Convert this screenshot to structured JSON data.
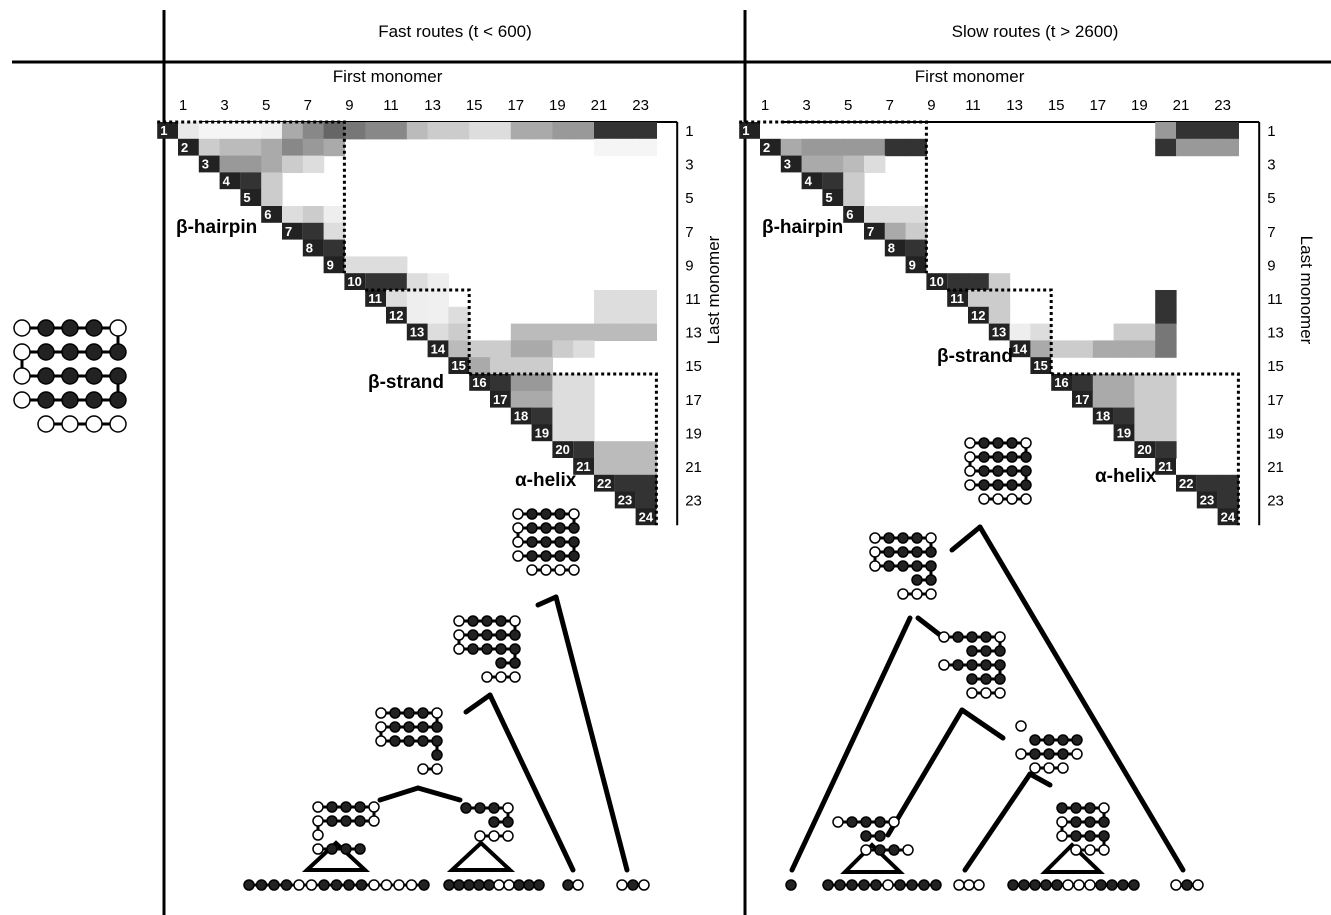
{
  "header": {
    "fast_label": "Fast routes (t < 600)",
    "slow_label": "Slow routes (t > 2600)"
  },
  "matrix": {
    "first_axis_label": "First monomer",
    "last_axis_label": "Last monomer",
    "top_ticks": [
      "1",
      "3",
      "5",
      "7",
      "9",
      "11",
      "13",
      "15",
      "17",
      "19",
      "21",
      "23"
    ],
    "right_ticks": [
      "1",
      "3",
      "5",
      "7",
      "9",
      "11",
      "13",
      "15",
      "17",
      "19",
      "21",
      "23"
    ],
    "diag_labels": [
      "1",
      "2",
      "3",
      "4",
      "5",
      "6",
      "7",
      "8",
      "9",
      "10",
      "11",
      "12",
      "13",
      "14",
      "15",
      "16",
      "17",
      "18",
      "19",
      "20",
      "21",
      "22",
      "23",
      "24"
    ],
    "region_labels": {
      "hairpin": "β-hairpin",
      "strand": "β-strand",
      "helix": "α-helix"
    }
  },
  "fast_cells": [
    [
      1,
      2,
      "#e8e8e8"
    ],
    [
      1,
      3,
      "#f5f5f5"
    ],
    [
      1,
      4,
      "#f5f5f5"
    ],
    [
      1,
      5,
      "#f5f5f5"
    ],
    [
      1,
      6,
      "#f0f0f0"
    ],
    [
      1,
      7,
      "#aaaaaa"
    ],
    [
      1,
      8,
      "#888888"
    ],
    [
      1,
      9,
      "#666666"
    ],
    [
      1,
      10,
      "#777777"
    ],
    [
      1,
      11,
      "#888888"
    ],
    [
      1,
      12,
      "#888888"
    ],
    [
      1,
      13,
      "#bbbbbb"
    ],
    [
      1,
      14,
      "#cccccc"
    ],
    [
      1,
      15,
      "#cccccc"
    ],
    [
      1,
      16,
      "#dddddd"
    ],
    [
      1,
      17,
      "#dddddd"
    ],
    [
      1,
      18,
      "#aaaaaa"
    ],
    [
      1,
      19,
      "#aaaaaa"
    ],
    [
      1,
      20,
      "#999999"
    ],
    [
      1,
      21,
      "#999999"
    ],
    [
      1,
      22,
      "#333333"
    ],
    [
      1,
      23,
      "#333333"
    ],
    [
      1,
      24,
      "#333333"
    ],
    [
      2,
      3,
      "#cccccc"
    ],
    [
      2,
      4,
      "#bbbbbb"
    ],
    [
      2,
      5,
      "#bbbbbb"
    ],
    [
      2,
      6,
      "#aaaaaa"
    ],
    [
      2,
      7,
      "#888888"
    ],
    [
      2,
      8,
      "#999999"
    ],
    [
      2,
      9,
      "#aaaaaa"
    ],
    [
      2,
      22,
      "#f5f5f5"
    ],
    [
      2,
      23,
      "#f5f5f5"
    ],
    [
      2,
      24,
      "#f5f5f5"
    ],
    [
      3,
      4,
      "#999999"
    ],
    [
      3,
      5,
      "#999999"
    ],
    [
      3,
      6,
      "#aaaaaa"
    ],
    [
      3,
      7,
      "#cccccc"
    ],
    [
      3,
      8,
      "#dddddd"
    ],
    [
      4,
      5,
      "#333333"
    ],
    [
      4,
      6,
      "#cccccc"
    ],
    [
      5,
      6,
      "#cccccc"
    ],
    [
      6,
      7,
      "#dddddd"
    ],
    [
      6,
      8,
      "#cccccc"
    ],
    [
      6,
      9,
      "#eeeeee"
    ],
    [
      7,
      8,
      "#333333"
    ],
    [
      7,
      9,
      "#dddddd"
    ],
    [
      8,
      9,
      "#333333"
    ],
    [
      9,
      10,
      "#dddddd"
    ],
    [
      9,
      11,
      "#dddddd"
    ],
    [
      9,
      12,
      "#dddddd"
    ],
    [
      10,
      11,
      "#333333"
    ],
    [
      10,
      12,
      "#333333"
    ],
    [
      10,
      13,
      "#dddddd"
    ],
    [
      10,
      14,
      "#eeeeee"
    ],
    [
      11,
      12,
      "#dddddd"
    ],
    [
      11,
      13,
      "#eeeeee"
    ],
    [
      11,
      14,
      "#f0f0f0"
    ],
    [
      11,
      22,
      "#dddddd"
    ],
    [
      11,
      23,
      "#dddddd"
    ],
    [
      11,
      24,
      "#dddddd"
    ],
    [
      12,
      13,
      "#eeeeee"
    ],
    [
      12,
      14,
      "#f0f0f0"
    ],
    [
      12,
      15,
      "#dddddd"
    ],
    [
      12,
      22,
      "#dddddd"
    ],
    [
      12,
      23,
      "#dddddd"
    ],
    [
      12,
      24,
      "#dddddd"
    ],
    [
      13,
      14,
      "#dddddd"
    ],
    [
      13,
      15,
      "#cccccc"
    ],
    [
      13,
      18,
      "#bbbbbb"
    ],
    [
      13,
      19,
      "#bbbbbb"
    ],
    [
      13,
      20,
      "#bbbbbb"
    ],
    [
      13,
      21,
      "#bbbbbb"
    ],
    [
      13,
      22,
      "#bbbbbb"
    ],
    [
      13,
      23,
      "#bbbbbb"
    ],
    [
      13,
      24,
      "#bbbbbb"
    ],
    [
      14,
      15,
      "#bbbbbb"
    ],
    [
      14,
      16,
      "#cccccc"
    ],
    [
      14,
      17,
      "#cccccc"
    ],
    [
      14,
      18,
      "#aaaaaa"
    ],
    [
      14,
      19,
      "#aaaaaa"
    ],
    [
      14,
      20,
      "#cccccc"
    ],
    [
      14,
      21,
      "#dddddd"
    ],
    [
      15,
      16,
      "#aaaaaa"
    ],
    [
      15,
      17,
      "#cccccc"
    ],
    [
      15,
      18,
      "#cccccc"
    ],
    [
      15,
      19,
      "#cccccc"
    ],
    [
      16,
      17,
      "#333333"
    ],
    [
      16,
      18,
      "#999999"
    ],
    [
      16,
      19,
      "#999999"
    ],
    [
      16,
      20,
      "#dddddd"
    ],
    [
      16,
      21,
      "#dddddd"
    ],
    [
      17,
      18,
      "#aaaaaa"
    ],
    [
      17,
      19,
      "#aaaaaa"
    ],
    [
      17,
      20,
      "#dddddd"
    ],
    [
      17,
      21,
      "#dddddd"
    ],
    [
      18,
      19,
      "#333333"
    ],
    [
      18,
      20,
      "#dddddd"
    ],
    [
      18,
      21,
      "#dddddd"
    ],
    [
      19,
      20,
      "#dddddd"
    ],
    [
      19,
      21,
      "#dddddd"
    ],
    [
      20,
      21,
      "#333333"
    ],
    [
      20,
      22,
      "#bbbbbb"
    ],
    [
      20,
      23,
      "#bbbbbb"
    ],
    [
      20,
      24,
      "#bbbbbb"
    ],
    [
      21,
      22,
      "#bbbbbb"
    ],
    [
      21,
      23,
      "#bbbbbb"
    ],
    [
      21,
      24,
      "#bbbbbb"
    ],
    [
      22,
      23,
      "#333333"
    ],
    [
      22,
      24,
      "#333333"
    ],
    [
      23,
      24,
      "#333333"
    ]
  ],
  "slow_cells": [
    [
      1,
      21,
      "#999999"
    ],
    [
      1,
      22,
      "#333333"
    ],
    [
      1,
      23,
      "#333333"
    ],
    [
      1,
      24,
      "#333333"
    ],
    [
      2,
      3,
      "#aaaaaa"
    ],
    [
      2,
      4,
      "#999999"
    ],
    [
      2,
      5,
      "#999999"
    ],
    [
      2,
      6,
      "#999999"
    ],
    [
      2,
      7,
      "#999999"
    ],
    [
      2,
      8,
      "#333333"
    ],
    [
      2,
      9,
      "#333333"
    ],
    [
      2,
      21,
      "#333333"
    ],
    [
      2,
      22,
      "#999999"
    ],
    [
      2,
      23,
      "#999999"
    ],
    [
      2,
      24,
      "#999999"
    ],
    [
      3,
      4,
      "#aaaaaa"
    ],
    [
      3,
      5,
      "#aaaaaa"
    ],
    [
      3,
      6,
      "#bbbbbb"
    ],
    [
      3,
      7,
      "#dddddd"
    ],
    [
      4,
      5,
      "#333333"
    ],
    [
      4,
      6,
      "#cccccc"
    ],
    [
      5,
      6,
      "#cccccc"
    ],
    [
      6,
      7,
      "#dddddd"
    ],
    [
      6,
      8,
      "#dddddd"
    ],
    [
      6,
      9,
      "#dddddd"
    ],
    [
      7,
      8,
      "#aaaaaa"
    ],
    [
      7,
      9,
      "#cccccc"
    ],
    [
      8,
      9,
      "#333333"
    ],
    [
      10,
      11,
      "#333333"
    ],
    [
      10,
      12,
      "#333333"
    ],
    [
      10,
      13,
      "#cccccc"
    ],
    [
      11,
      12,
      "#cccccc"
    ],
    [
      11,
      13,
      "#cccccc"
    ],
    [
      11,
      21,
      "#333333"
    ],
    [
      12,
      13,
      "#cccccc"
    ],
    [
      12,
      21,
      "#333333"
    ],
    [
      13,
      14,
      "#eeeeee"
    ],
    [
      13,
      15,
      "#dddddd"
    ],
    [
      13,
      19,
      "#cccccc"
    ],
    [
      13,
      20,
      "#cccccc"
    ],
    [
      13,
      21,
      "#777777"
    ],
    [
      14,
      15,
      "#aaaaaa"
    ],
    [
      14,
      16,
      "#cccccc"
    ],
    [
      14,
      17,
      "#cccccc"
    ],
    [
      14,
      18,
      "#aaaaaa"
    ],
    [
      14,
      19,
      "#aaaaaa"
    ],
    [
      14,
      20,
      "#aaaaaa"
    ],
    [
      14,
      21,
      "#777777"
    ],
    [
      16,
      17,
      "#333333"
    ],
    [
      16,
      18,
      "#aaaaaa"
    ],
    [
      16,
      19,
      "#aaaaaa"
    ],
    [
      16,
      20,
      "#cccccc"
    ],
    [
      16,
      21,
      "#cccccc"
    ],
    [
      17,
      18,
      "#aaaaaa"
    ],
    [
      17,
      19,
      "#aaaaaa"
    ],
    [
      17,
      20,
      "#cccccc"
    ],
    [
      17,
      21,
      "#cccccc"
    ],
    [
      18,
      19,
      "#333333"
    ],
    [
      18,
      20,
      "#cccccc"
    ],
    [
      18,
      21,
      "#cccccc"
    ],
    [
      19,
      20,
      "#cccccc"
    ],
    [
      19,
      21,
      "#cccccc"
    ],
    [
      20,
      21,
      "#333333"
    ],
    [
      22,
      23,
      "#333333"
    ],
    [
      22,
      24,
      "#333333"
    ],
    [
      23,
      24,
      "#333333"
    ]
  ]
}
